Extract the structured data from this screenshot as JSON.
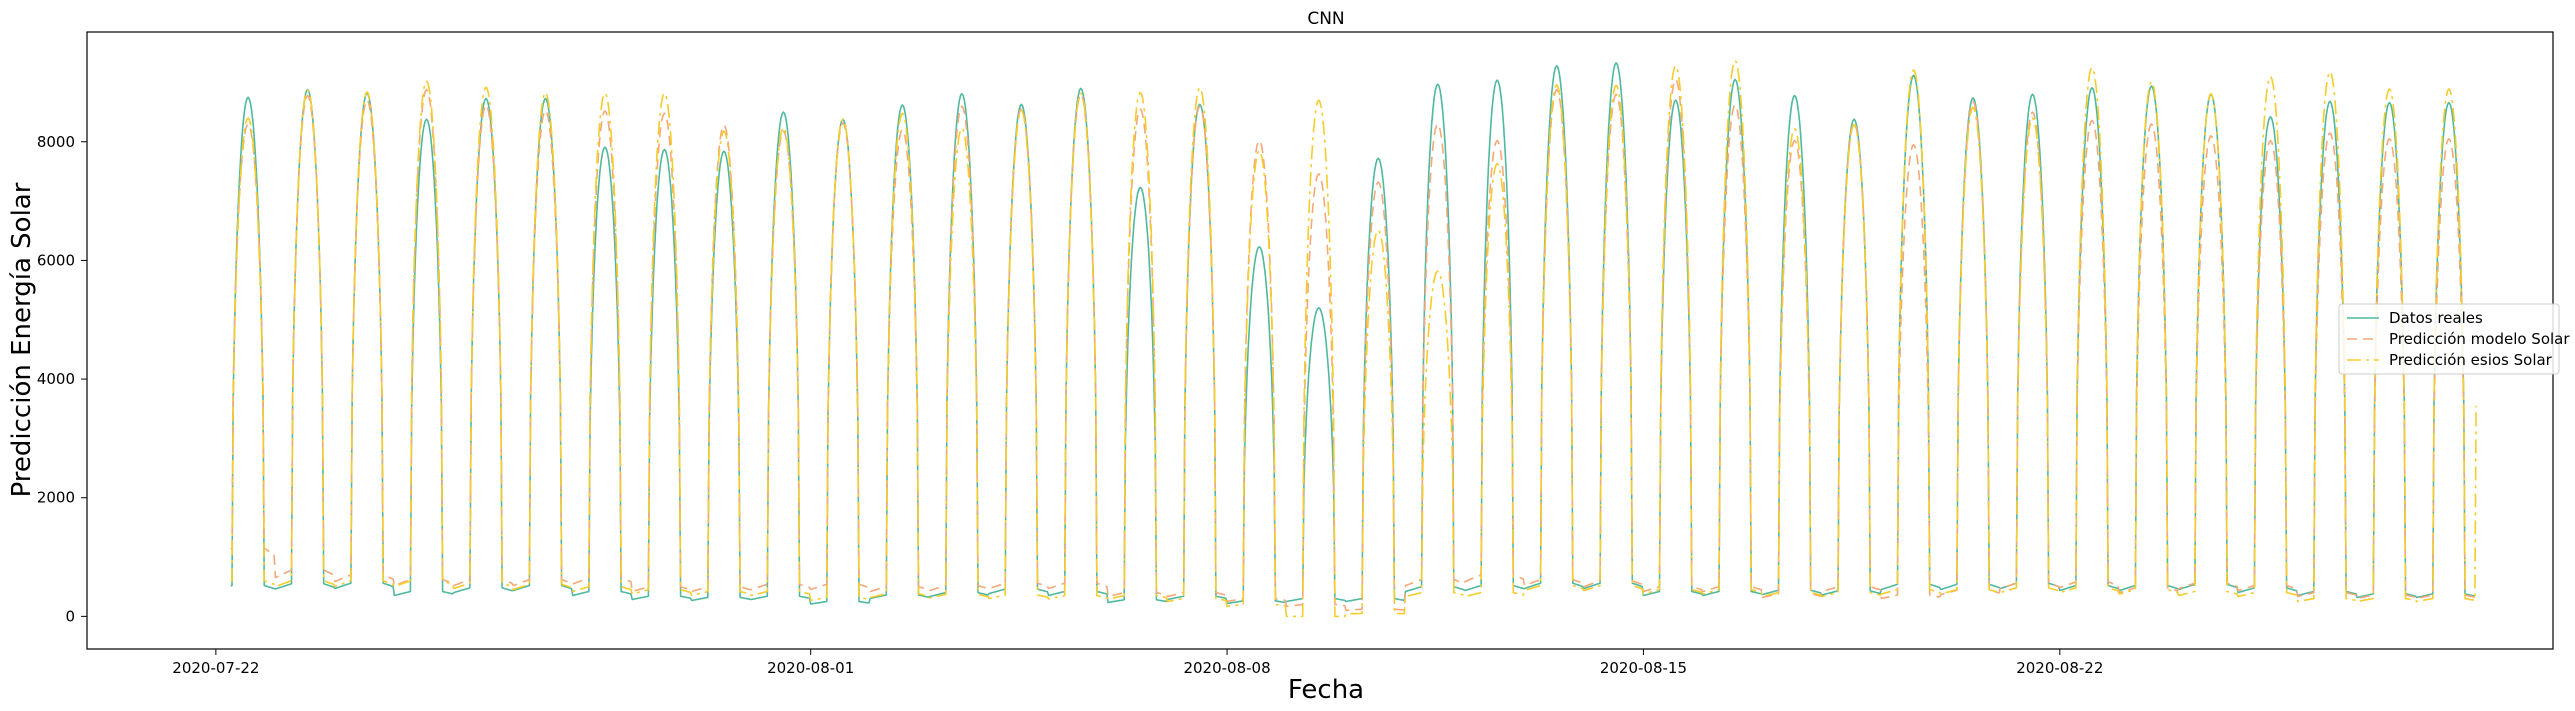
{
  "chart_data": {
    "type": "line",
    "title": "CNN",
    "xlabel": "Fecha",
    "ylabel": "Predicción Energía Solar",
    "x_start": "2020-07-22",
    "x_end": "2020-08-28",
    "xlim": [
      "2020-07-19T20:00",
      "2020-08-30T07:00"
    ],
    "ylim": [
      -550,
      9850
    ],
    "x_ticks": [
      "2020-07-22",
      "2020-08-01",
      "2020-08-08",
      "2020-08-15",
      "2020-08-22"
    ],
    "y_ticks": [
      0,
      2000,
      4000,
      6000,
      8000
    ],
    "legend_position": "center-right",
    "series": [
      {
        "name": "Datos reales",
        "color": "#4fb99f",
        "dash": "solid",
        "daily_peaks": [
          8750,
          8880,
          8820,
          8380,
          8730,
          8730,
          7910,
          7870,
          7840,
          8500,
          8380,
          8620,
          8810,
          8630,
          8900,
          7230,
          8630,
          6230,
          5200,
          7720,
          8970,
          9040,
          9280,
          9330,
          8700,
          9050,
          8780,
          8380,
          9120,
          8740,
          8800,
          8910,
          8940,
          8800,
          8420,
          8680,
          8660,
          8660
        ],
        "daily_night": [
          520,
          550,
          560,
          420,
          480,
          520,
          420,
          340,
          320,
          340,
          250,
          360,
          400,
          460,
          420,
          280,
          340,
          260,
          300,
          300,
          500,
          520,
          560,
          560,
          420,
          420,
          440,
          430,
          540,
          540,
          560,
          520,
          520,
          540,
          480,
          420,
          380,
          380
        ]
      },
      {
        "name": "Predicción modelo Solar",
        "color": "#f5a878",
        "dash": "10,6",
        "daily_peaks": [
          8300,
          8780,
          8700,
          8880,
          8620,
          8530,
          8520,
          8480,
          8280,
          8180,
          8320,
          8200,
          8600,
          8560,
          8800,
          8550,
          8600,
          8020,
          7460,
          7320,
          8300,
          8020,
          8880,
          8800,
          9050,
          8620,
          8020,
          8320,
          7950,
          8680,
          8500,
          8360,
          8300,
          8100,
          8020,
          8150,
          8050,
          8050
        ],
        "daily_night": [
          1150,
          780,
          700,
          620,
          620,
          620,
          650,
          500,
          500,
          540,
          540,
          500,
          520,
          560,
          560,
          400,
          400,
          300,
          200,
          120,
          620,
          700,
          620,
          600,
          500,
          500,
          380,
          500,
          360,
          440,
          560,
          580,
          480,
          560,
          520,
          400,
          360,
          360
        ]
      },
      {
        "name": "Predicción esios Solar",
        "color": "#f5cc2a",
        "dash": "14,5,3,5",
        "daily_peaks": [
          8400,
          8870,
          8840,
          9020,
          8920,
          8830,
          8820,
          8820,
          8180,
          8240,
          8380,
          8480,
          8230,
          8530,
          8820,
          8830,
          8910,
          7850,
          8700,
          6510,
          5820,
          7630,
          8960,
          8950,
          9280,
          9370,
          8220,
          8290,
          9210,
          8580,
          8400,
          9250,
          9010,
          8810,
          9100,
          9180,
          8890,
          8890
        ],
        "daily_night": [
          600,
          600,
          600,
          600,
          560,
          540,
          500,
          450,
          420,
          420,
          320,
          380,
          370,
          360,
          350,
          350,
          300,
          200,
          0,
          50,
          400,
          400,
          520,
          520,
          450,
          450,
          400,
          400,
          450,
          450,
          480,
          480,
          450,
          420,
          400,
          300,
          300,
          300
        ],
        "last_value": 3550
      }
    ]
  }
}
